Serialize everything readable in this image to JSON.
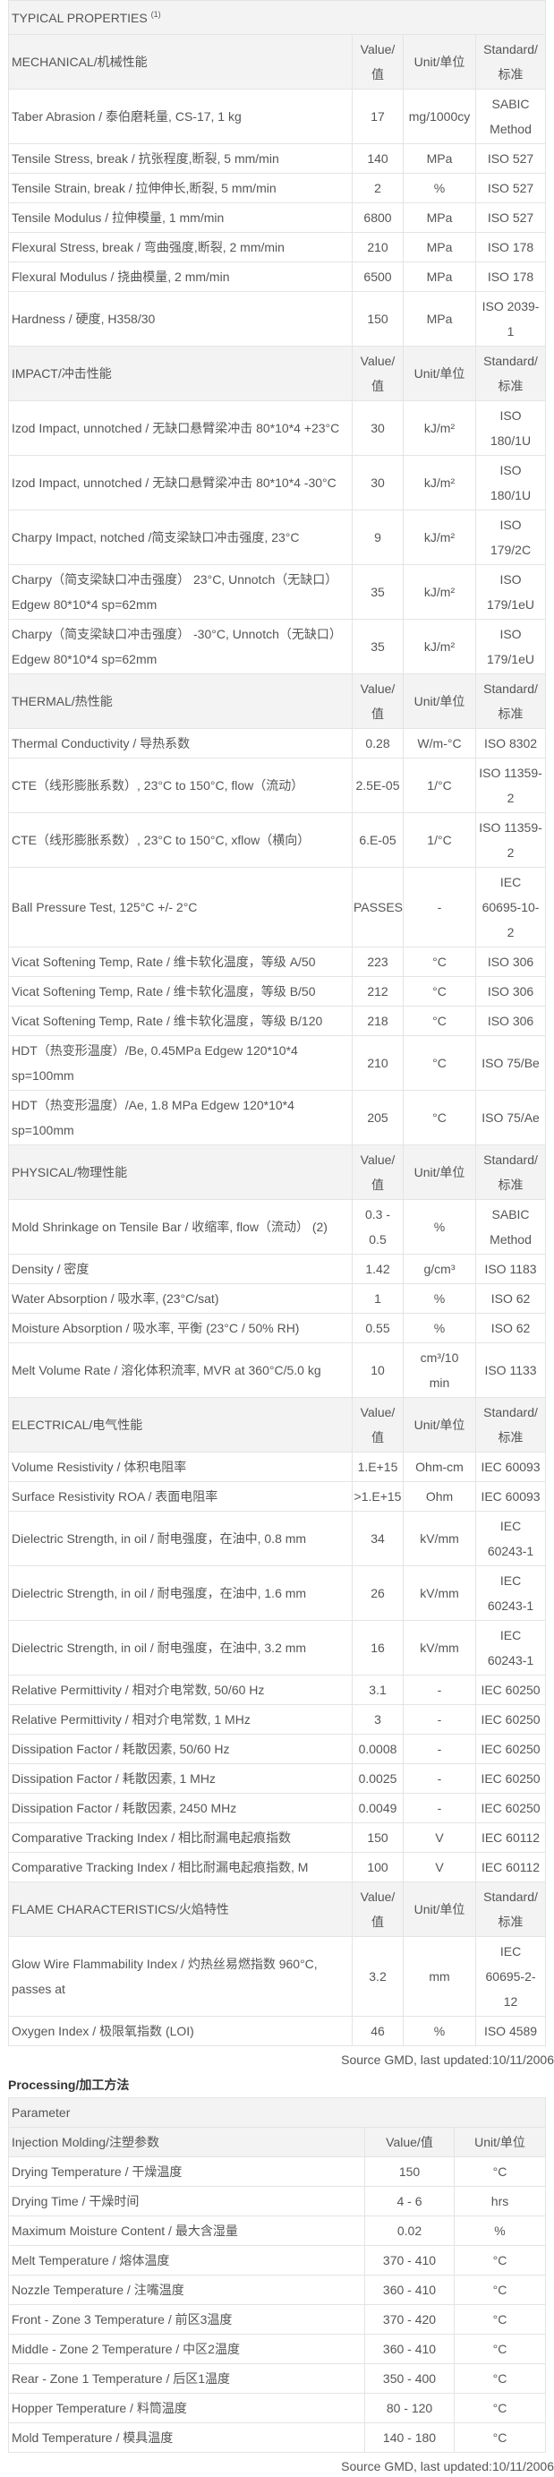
{
  "properties": {
    "title": "TYPICAL PROPERTIES",
    "title_note": "(1)",
    "col_value": "Value/\n值",
    "col_unit": "Unit/单位",
    "col_standard": "Standard/\n标准",
    "sections": [
      {
        "name": "MECHANICAL/机械性能",
        "rows": [
          [
            "Taber Abrasion / 泰伯磨耗量, CS-17, 1 kg",
            "17",
            "mg/1000cy",
            "SABIC\nMethod"
          ],
          [
            "Tensile Stress, break / 抗张程度,断裂, 5 mm/min",
            "140",
            "MPa",
            "ISO 527"
          ],
          [
            "Tensile Strain, break / 拉伸伸长,断裂, 5 mm/min",
            "2",
            "%",
            "ISO 527"
          ],
          [
            "Tensile Modulus / 拉伸模量, 1 mm/min",
            "6800",
            "MPa",
            "ISO 527"
          ],
          [
            "Flexural Stress, break / 弯曲强度,断裂, 2 mm/min",
            "210",
            "MPa",
            "ISO 178"
          ],
          [
            "Flexural Modulus / 挠曲模量, 2 mm/min",
            "6500",
            "MPa",
            "ISO 178"
          ],
          [
            "Hardness / 硬度, H358/30",
            "150",
            "MPa",
            "ISO 2039-\n1"
          ]
        ]
      },
      {
        "name": "IMPACT/冲击性能",
        "rows": [
          [
            "Izod Impact, unnotched / 无缺口悬臂梁冲击 80*10*4 +23°C",
            "30",
            "kJ/m²",
            "ISO\n180/1U"
          ],
          [
            "Izod Impact, unnotched / 无缺口悬臂梁冲击 80*10*4 -30°C",
            "30",
            "kJ/m²",
            "ISO\n180/1U"
          ],
          [
            "Charpy Impact, notched /简支梁缺口冲击强度, 23°C",
            "9",
            "kJ/m²",
            "ISO\n179/2C"
          ],
          [
            "Charpy（简支梁缺口冲击强度） 23°C, Unnotch（无缺口） Edgew 80*10*4 sp=62mm",
            "35",
            "kJ/m²",
            "ISO\n179/1eU"
          ],
          [
            "Charpy（简支梁缺口冲击强度） -30°C, Unnotch（无缺口） Edgew 80*10*4 sp=62mm",
            "35",
            "kJ/m²",
            "ISO\n179/1eU"
          ]
        ]
      },
      {
        "name": "THERMAL/热性能",
        "rows": [
          [
            "Thermal Conductivity / 导热系数",
            "0.28",
            "W/m-°C",
            "ISO 8302"
          ],
          [
            "CTE（线形膨胀系数）, 23°C to 150°C, flow（流动）",
            "2.5E-05",
            "1/°C",
            "ISO 11359-\n2"
          ],
          [
            "CTE（线形膨胀系数）, 23°C to 150°C, xflow（横向）",
            "6.E-05",
            "1/°C",
            "ISO 11359-\n2"
          ],
          [
            "Ball Pressure Test, 125°C +/- 2°C",
            "PASSES",
            "-",
            "IEC\n60695-10-\n2"
          ],
          [
            "Vicat Softening Temp, Rate / 维卡软化温度，等级 A/50",
            "223",
            "°C",
            "ISO 306"
          ],
          [
            "Vicat Softening Temp, Rate / 维卡软化温度，等级 B/50",
            "212",
            "°C",
            "ISO 306"
          ],
          [
            "Vicat Softening Temp, Rate / 维卡软化温度，等级 B/120",
            "218",
            "°C",
            "ISO 306"
          ],
          [
            "HDT（热变形温度）/Be, 0.45MPa Edgew 120*10*4 sp=100mm",
            "210",
            "°C",
            "ISO 75/Be"
          ],
          [
            "HDT（热变形温度）/Ae, 1.8 MPa Edgew 120*10*4 sp=100mm",
            "205",
            "°C",
            "ISO 75/Ae"
          ]
        ]
      },
      {
        "name": "PHYSICAL/物理性能",
        "rows": [
          [
            "Mold Shrinkage on Tensile Bar / 收缩率, flow（流动） (2)",
            "0.3 -\n0.5",
            "%",
            "SABIC\nMethod"
          ],
          [
            "Density / 密度",
            "1.42",
            "g/cm³",
            "ISO 1183"
          ],
          [
            "Water Absorption / 吸水率, (23°C/sat)",
            "1",
            "%",
            "ISO 62"
          ],
          [
            "Moisture Absorption / 吸水率, 平衡 (23°C / 50% RH)",
            "0.55",
            "%",
            "ISO 62"
          ],
          [
            "Melt Volume Rate / 溶化体积流率, MVR at 360°C/5.0 kg",
            "10",
            "cm³/10\nmin",
            "ISO 1133"
          ]
        ]
      },
      {
        "name": "ELECTRICAL/电气性能",
        "rows": [
          [
            "Volume Resistivity / 体积电阻率",
            "1.E+15",
            "Ohm-cm",
            "IEC 60093"
          ],
          [
            "Surface Resistivity ROA / 表面电阻率",
            ">1.E+15",
            "Ohm",
            "IEC 60093"
          ],
          [
            "Dielectric Strength, in oil / 耐电强度，在油中, 0.8 mm",
            "34",
            "kV/mm",
            "IEC\n60243-1"
          ],
          [
            "Dielectric Strength, in oil / 耐电强度，在油中, 1.6 mm",
            "26",
            "kV/mm",
            "IEC\n60243-1"
          ],
          [
            "Dielectric Strength, in oil / 耐电强度，在油中, 3.2 mm",
            "16",
            "kV/mm",
            "IEC\n60243-1"
          ],
          [
            "Relative Permittivity / 相对介电常数, 50/60 Hz",
            "3.1",
            "-",
            "IEC 60250"
          ],
          [
            "Relative Permittivity / 相对介电常数, 1 MHz",
            "3",
            "-",
            "IEC 60250"
          ],
          [
            "Dissipation Factor / 耗散因素, 50/60 Hz",
            "0.0008",
            "-",
            "IEC 60250"
          ],
          [
            "Dissipation Factor / 耗散因素, 1 MHz",
            "0.0025",
            "-",
            "IEC 60250"
          ],
          [
            "Dissipation Factor / 耗散因素, 2450 MHz",
            "0.0049",
            "-",
            "IEC 60250"
          ],
          [
            "Comparative Tracking Index / 相比耐漏电起痕指数",
            "150",
            "V",
            "IEC 60112"
          ],
          [
            "Comparative Tracking Index / 相比耐漏电起痕指数, M",
            "100",
            "V",
            "IEC 60112"
          ]
        ]
      },
      {
        "name": "FLAME CHARACTERISTICS/火焰特性",
        "rows": [
          [
            "Glow Wire Flammability Index / 灼热丝易燃指数 960°C, passes at",
            "3.2",
            "mm",
            "IEC\n60695-2-\n12"
          ],
          [
            "Oxygen Index / 极限氧指数 (LOI)",
            "46",
            "%",
            "ISO 4589"
          ]
        ]
      }
    ],
    "source": "Source GMD, last updated:10/11/2006"
  },
  "processing": {
    "heading": "Processing/加工方法",
    "parameter_label": "Parameter",
    "section_name": "Injection Molding/注塑参数",
    "col_value": "Value/值",
    "col_unit": "Unit/单位",
    "rows": [
      [
        "Drying Temperature / 干燥温度",
        "150",
        "°C"
      ],
      [
        "Drying Time / 干燥时间",
        "4 - 6",
        "hrs"
      ],
      [
        "Maximum Moisture Content / 最大含湿量",
        "0.02",
        "%"
      ],
      [
        "Melt Temperature / 熔体温度",
        "370 - 410",
        "°C"
      ],
      [
        "Nozzle Temperature / 注嘴温度",
        "360 - 410",
        "°C"
      ],
      [
        "Front - Zone 3 Temperature / 前区3温度",
        "370 - 420",
        "°C"
      ],
      [
        "Middle - Zone 2 Temperature / 中区2温度",
        "360 - 410",
        "°C"
      ],
      [
        "Rear - Zone 1 Temperature / 后区1温度",
        "350 - 400",
        "°C"
      ],
      [
        "Hopper Temperature / 料筒温度",
        "80 - 120",
        "°C"
      ],
      [
        "Mold Temperature / 模具温度",
        "140 - 180",
        "°C"
      ]
    ],
    "source": "Source GMD, last updated:10/11/2006"
  }
}
